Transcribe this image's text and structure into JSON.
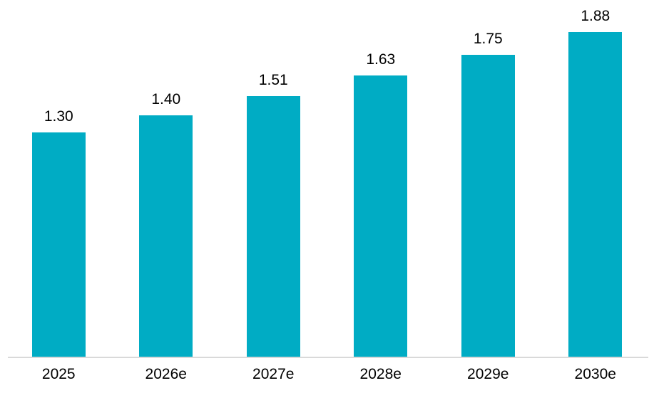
{
  "chart_data": {
    "type": "bar",
    "title": "",
    "xlabel": "",
    "ylabel": "",
    "categories": [
      "2025",
      "2026e",
      "2027e",
      "2028e",
      "2029e",
      "2030e"
    ],
    "values": [
      1.3,
      1.4,
      1.51,
      1.63,
      1.75,
      1.88
    ],
    "value_labels": [
      "1.30",
      "1.40",
      "1.51",
      "1.63",
      "1.75",
      "1.88"
    ],
    "ylim": [
      0,
      2.07
    ],
    "grid": false,
    "legend": false,
    "data_labels_position": "above-bars",
    "bar_color": "#00ACC4",
    "axis_line_color": "#D9D9D9",
    "label_color": "#000000",
    "background_color": "#FFFFFF"
  }
}
